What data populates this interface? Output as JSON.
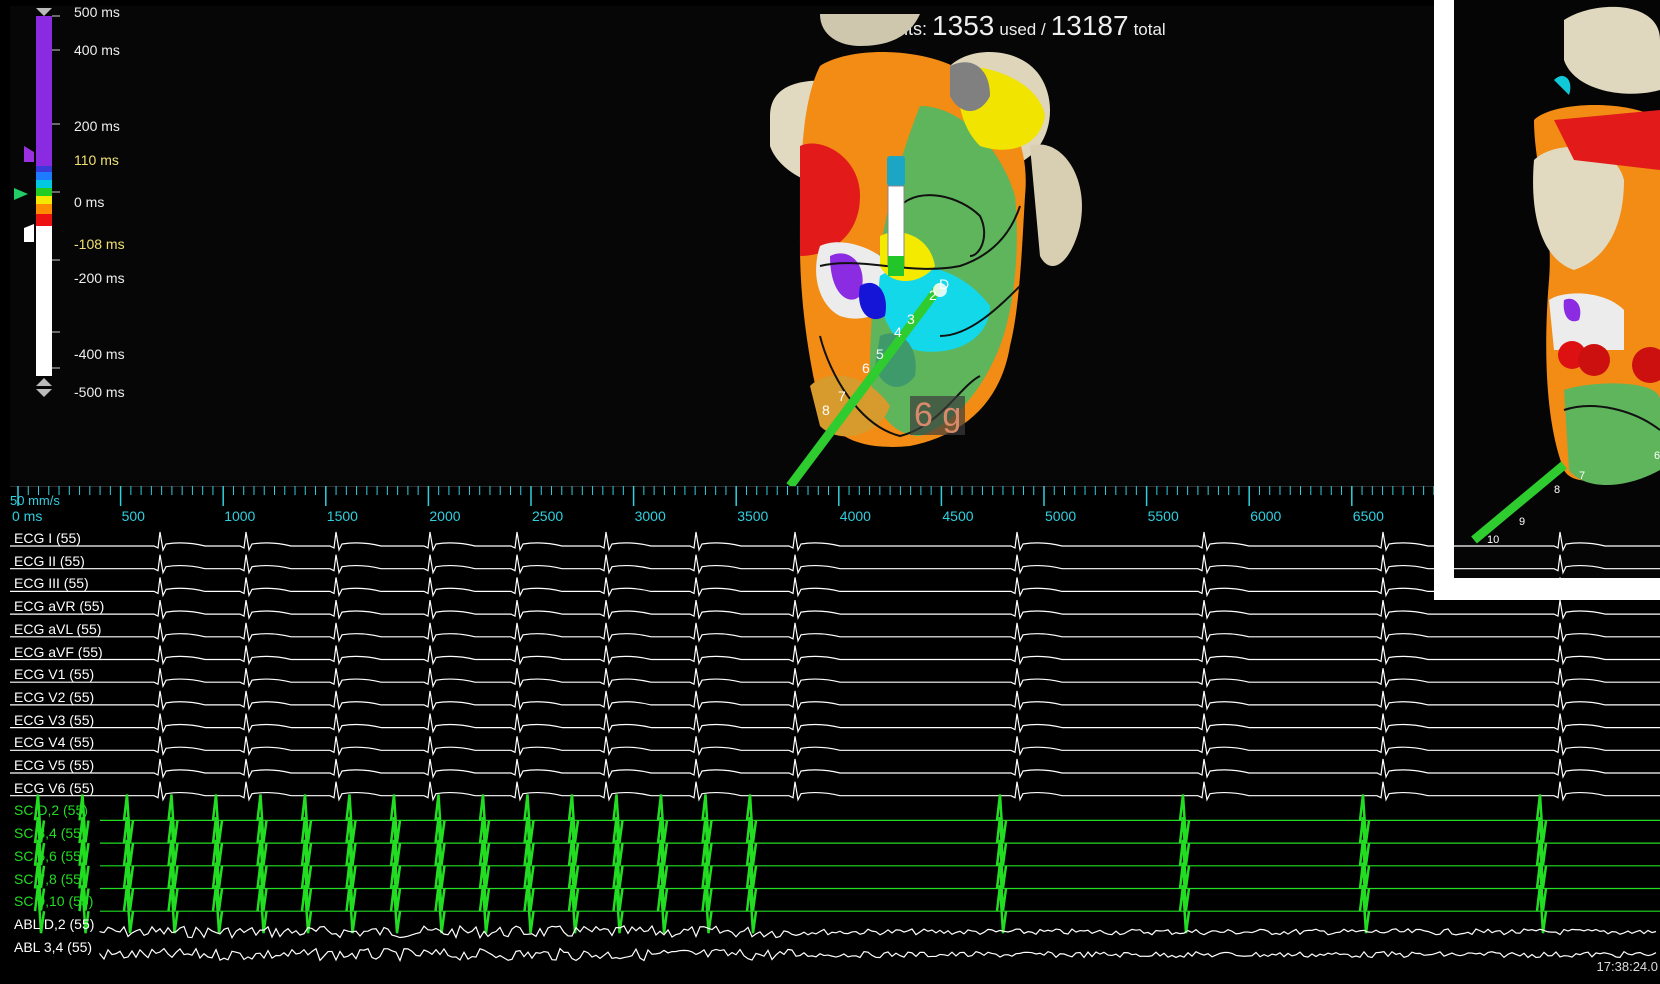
{
  "points": {
    "prefix": "Points:",
    "used": "1353",
    "used_label": "used /",
    "total": "13187",
    "total_label": "total"
  },
  "color_scale": {
    "labels": [
      "500 ms",
      "400 ms",
      "200 ms",
      "110 ms",
      "0 ms",
      "-108 ms",
      "-200 ms",
      "-400 ms",
      "-500 ms"
    ]
  },
  "map_annotations": {
    "contact_force": "6 g",
    "electrode_labels": [
      "D",
      "2",
      "3",
      "4",
      "5",
      "6",
      "7",
      "8"
    ],
    "inset_electrode_labels": [
      "6",
      "7",
      "8",
      "9",
      "10"
    ]
  },
  "timeline": {
    "speed": "50 mm/s",
    "zero": "0 ms",
    "ticks": [
      "500",
      "1000",
      "1500",
      "2000",
      "2500",
      "3000",
      "3500",
      "4000",
      "4500",
      "5000",
      "5500",
      "6000",
      "6500"
    ]
  },
  "channels": [
    {
      "label": "ECG I (55)",
      "kind": "ecg"
    },
    {
      "label": "ECG II (55)",
      "kind": "ecg"
    },
    {
      "label": "ECG III (55)",
      "kind": "ecg"
    },
    {
      "label": "ECG aVR (55)",
      "kind": "ecg"
    },
    {
      "label": "ECG aVL (55)",
      "kind": "ecg"
    },
    {
      "label": "ECG aVF (55)",
      "kind": "ecg"
    },
    {
      "label": "ECG V1 (55)",
      "kind": "ecg"
    },
    {
      "label": "ECG V2 (55)",
      "kind": "ecg"
    },
    {
      "label": "ECG V3 (55)",
      "kind": "ecg"
    },
    {
      "label": "ECG V4 (55)",
      "kind": "ecg"
    },
    {
      "label": "ECG V5 (55)",
      "kind": "ecg"
    },
    {
      "label": "ECG V6 (55)",
      "kind": "ecg"
    },
    {
      "label": "SC D,2 (55)",
      "kind": "sc"
    },
    {
      "label": "SC 3,4 (55)",
      "kind": "sc"
    },
    {
      "label": "SC 5,6 (55)",
      "kind": "sc"
    },
    {
      "label": "SC 7,8 (55)",
      "kind": "sc"
    },
    {
      "label": "SC 9,10 (55)",
      "kind": "sc"
    },
    {
      "label": "ABL D,2 (55)",
      "kind": "abl"
    },
    {
      "label": "ABL 3,4 (55)",
      "kind": "abl"
    }
  ],
  "clock": "17:38:24.0",
  "colors": {
    "ecg": "#ffffff",
    "sc": "#22dd22",
    "abl": "#ffffff",
    "timeline": "#2fd0e0"
  }
}
